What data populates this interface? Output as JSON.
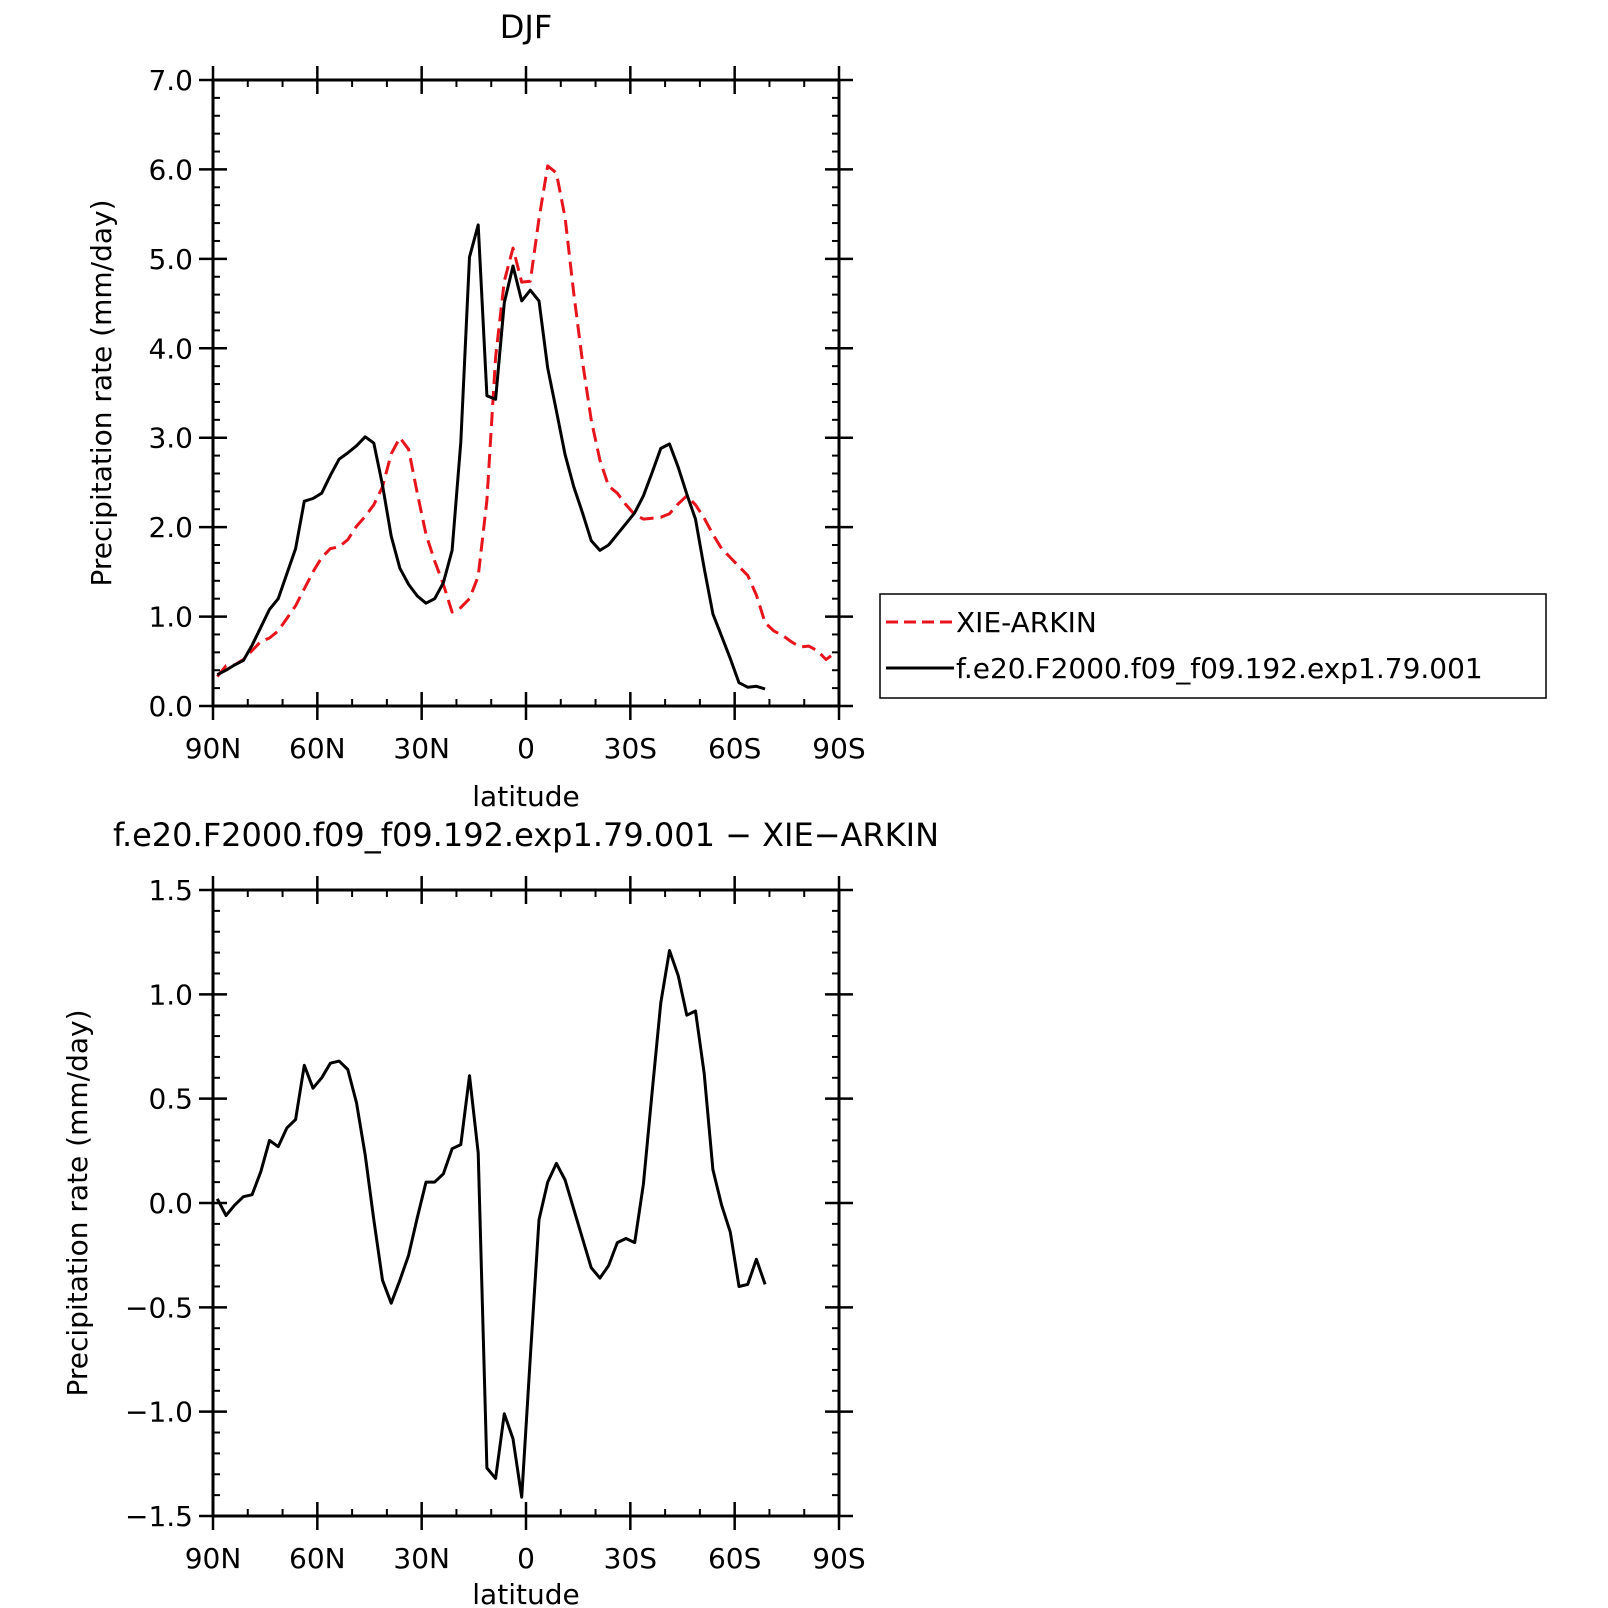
{
  "chart_data": [
    {
      "type": "line",
      "title": "DJF",
      "xlabel": "latitude",
      "ylabel": "Precipitation rate (mm/day)",
      "xlim": [
        -90,
        90
      ],
      "ylim": [
        0,
        7
      ],
      "x_ticks": [
        {
          "value": -90,
          "label": "90N"
        },
        {
          "value": -60,
          "label": "60N"
        },
        {
          "value": -30,
          "label": "30N"
        },
        {
          "value": 0,
          "label": "0"
        },
        {
          "value": 30,
          "label": "30S"
        },
        {
          "value": 60,
          "label": "60S"
        },
        {
          "value": 90,
          "label": "90S"
        }
      ],
      "y_ticks": [
        {
          "value": 0,
          "label": "0.0"
        },
        {
          "value": 1,
          "label": "1.0"
        },
        {
          "value": 2,
          "label": "2.0"
        },
        {
          "value": 3,
          "label": "3.0"
        },
        {
          "value": 4,
          "label": "4.0"
        },
        {
          "value": 5,
          "label": "5.0"
        },
        {
          "value": 6,
          "label": "6.0"
        },
        {
          "value": 7,
          "label": "7.0"
        }
      ],
      "legend_position": "right",
      "series": [
        {
          "name": "XIE-ARKIN",
          "color": "#e8141b",
          "dash": "dashed",
          "points": [
            [
              -88.75,
              0.33
            ],
            [
              -86.25,
              0.45
            ],
            [
              -83.75,
              0.46
            ],
            [
              -81.25,
              0.52
            ],
            [
              -78.75,
              0.62
            ],
            [
              -76.25,
              0.72
            ],
            [
              -73.75,
              0.76
            ],
            [
              -71.25,
              0.84
            ],
            [
              -68.75,
              0.98
            ],
            [
              -66.25,
              1.12
            ],
            [
              -63.75,
              1.31
            ],
            [
              -61.25,
              1.5
            ],
            [
              -58.75,
              1.66
            ],
            [
              -56.25,
              1.76
            ],
            [
              -53.75,
              1.78
            ],
            [
              -51.25,
              1.86
            ],
            [
              -48.75,
              2.01
            ],
            [
              -46.25,
              2.12
            ],
            [
              -43.75,
              2.25
            ],
            [
              -41.25,
              2.45
            ],
            [
              -38.75,
              2.82
            ],
            [
              -36.25,
              3.0
            ],
            [
              -33.75,
              2.87
            ],
            [
              -31.25,
              2.38
            ],
            [
              -28.75,
              1.92
            ],
            [
              -26.25,
              1.62
            ],
            [
              -23.75,
              1.36
            ],
            [
              -21.25,
              1.05
            ],
            [
              -18.75,
              1.1
            ],
            [
              -16.25,
              1.2
            ],
            [
              -13.75,
              1.45
            ],
            [
              -11.25,
              2.3
            ],
            [
              -8.75,
              3.9
            ],
            [
              -6.25,
              4.75
            ],
            [
              -3.75,
              5.12
            ],
            [
              -1.25,
              4.74
            ],
            [
              1.25,
              4.75
            ],
            [
              3.75,
              5.45
            ],
            [
              6.25,
              6.04
            ],
            [
              8.75,
              5.96
            ],
            [
              11.25,
              5.46
            ],
            [
              13.75,
              4.61
            ],
            [
              16.25,
              3.85
            ],
            [
              18.75,
              3.2
            ],
            [
              21.25,
              2.75
            ],
            [
              23.75,
              2.46
            ],
            [
              26.25,
              2.38
            ],
            [
              28.75,
              2.25
            ],
            [
              31.25,
              2.14
            ],
            [
              33.75,
              2.09
            ],
            [
              36.25,
              2.1
            ],
            [
              38.75,
              2.11
            ],
            [
              41.25,
              2.15
            ],
            [
              43.75,
              2.26
            ],
            [
              46.25,
              2.35
            ],
            [
              48.75,
              2.25
            ],
            [
              51.25,
              2.1
            ],
            [
              53.75,
              1.92
            ],
            [
              56.25,
              1.76
            ],
            [
              58.75,
              1.66
            ],
            [
              61.25,
              1.56
            ],
            [
              63.75,
              1.46
            ],
            [
              66.25,
              1.24
            ],
            [
              68.75,
              0.93
            ],
            [
              71.25,
              0.84
            ],
            [
              73.75,
              0.79
            ],
            [
              76.25,
              0.72
            ],
            [
              78.75,
              0.66
            ],
            [
              81.25,
              0.67
            ],
            [
              83.75,
              0.62
            ],
            [
              86.25,
              0.52
            ],
            [
              88.75,
              0.59
            ]
          ]
        },
        {
          "name": "f.e20.F2000.f09_f09.192.exp1.79.001",
          "color": "#000000",
          "dash": "solid",
          "points": [
            [
              -88.75,
              0.35
            ],
            [
              -86.25,
              0.4
            ],
            [
              -83.75,
              0.46
            ],
            [
              -81.25,
              0.51
            ],
            [
              -78.75,
              0.68
            ],
            [
              -76.25,
              0.88
            ],
            [
              -73.75,
              1.08
            ],
            [
              -71.25,
              1.2
            ],
            [
              -68.75,
              1.48
            ],
            [
              -66.25,
              1.76
            ],
            [
              -63.75,
              2.29
            ],
            [
              -61.25,
              2.32
            ],
            [
              -58.75,
              2.38
            ],
            [
              -56.25,
              2.58
            ],
            [
              -53.75,
              2.76
            ],
            [
              -51.25,
              2.83
            ],
            [
              -48.75,
              2.91
            ],
            [
              -46.25,
              3.01
            ],
            [
              -43.75,
              2.94
            ],
            [
              -41.25,
              2.47
            ],
            [
              -38.75,
              1.9
            ],
            [
              -36.25,
              1.54
            ],
            [
              -33.75,
              1.36
            ],
            [
              -31.25,
              1.23
            ],
            [
              -28.75,
              1.15
            ],
            [
              -26.25,
              1.2
            ],
            [
              -23.75,
              1.38
            ],
            [
              -21.25,
              1.74
            ],
            [
              -18.75,
              2.95
            ],
            [
              -16.25,
              5.02
            ],
            [
              -13.75,
              5.38
            ],
            [
              -11.25,
              3.47
            ],
            [
              -8.75,
              3.43
            ],
            [
              -6.25,
              4.51
            ],
            [
              -3.75,
              4.92
            ],
            [
              -1.25,
              4.53
            ],
            [
              1.25,
              4.65
            ],
            [
              3.75,
              4.53
            ],
            [
              6.25,
              3.78
            ],
            [
              8.75,
              3.3
            ],
            [
              11.25,
              2.81
            ],
            [
              13.75,
              2.45
            ],
            [
              16.25,
              2.16
            ],
            [
              18.75,
              1.85
            ],
            [
              21.25,
              1.74
            ],
            [
              23.75,
              1.8
            ],
            [
              26.25,
              1.92
            ],
            [
              28.75,
              2.04
            ],
            [
              31.25,
              2.16
            ],
            [
              33.75,
              2.35
            ],
            [
              36.25,
              2.61
            ],
            [
              38.75,
              2.88
            ],
            [
              41.25,
              2.93
            ],
            [
              43.75,
              2.67
            ],
            [
              46.25,
              2.37
            ],
            [
              48.75,
              2.09
            ],
            [
              51.25,
              1.54
            ],
            [
              53.75,
              1.03
            ],
            [
              56.25,
              0.78
            ],
            [
              58.75,
              0.53
            ],
            [
              61.25,
              0.26
            ],
            [
              63.75,
              0.21
            ],
            [
              66.25,
              0.22
            ],
            [
              68.75,
              0.19
            ]
          ]
        }
      ]
    },
    {
      "type": "line",
      "title": "f.e20.F2000.f09_f09.192.exp1.79.001 − XIE−ARKIN",
      "xlabel": "latitude",
      "ylabel": "Precipitation rate (mm/day)",
      "xlim": [
        -90,
        90
      ],
      "ylim": [
        -1.5,
        1.5
      ],
      "x_ticks": [
        {
          "value": -90,
          "label": "90N"
        },
        {
          "value": -60,
          "label": "60N"
        },
        {
          "value": -30,
          "label": "30N"
        },
        {
          "value": 0,
          "label": "0"
        },
        {
          "value": 30,
          "label": "30S"
        },
        {
          "value": 60,
          "label": "60S"
        },
        {
          "value": 90,
          "label": "90S"
        }
      ],
      "y_ticks": [
        {
          "value": -1.5,
          "label": "−1.5"
        },
        {
          "value": -1.0,
          "label": "−1.0"
        },
        {
          "value": -0.5,
          "label": "−0.5"
        },
        {
          "value": 0.0,
          "label": "0.0"
        },
        {
          "value": 0.5,
          "label": "0.5"
        },
        {
          "value": 1.0,
          "label": "1.0"
        },
        {
          "value": 1.5,
          "label": "1.5"
        }
      ],
      "series": [
        {
          "color": "#000000",
          "dash": "solid",
          "points": [
            [
              -88.75,
              0.02
            ],
            [
              -86.25,
              -0.06
            ],
            [
              -83.75,
              -0.01
            ],
            [
              -81.25,
              0.03
            ],
            [
              -78.75,
              0.04
            ],
            [
              -76.25,
              0.15
            ],
            [
              -73.75,
              0.3
            ],
            [
              -71.25,
              0.27
            ],
            [
              -68.75,
              0.36
            ],
            [
              -66.25,
              0.4
            ],
            [
              -63.75,
              0.66
            ],
            [
              -61.25,
              0.55
            ],
            [
              -58.75,
              0.6
            ],
            [
              -56.25,
              0.67
            ],
            [
              -53.75,
              0.68
            ],
            [
              -51.25,
              0.64
            ],
            [
              -48.75,
              0.48
            ],
            [
              -46.25,
              0.23
            ],
            [
              -43.75,
              -0.08
            ],
            [
              -41.25,
              -0.37
            ],
            [
              -38.75,
              -0.48
            ],
            [
              -36.25,
              -0.37
            ],
            [
              -33.75,
              -0.25
            ],
            [
              -31.25,
              -0.07
            ],
            [
              -28.75,
              0.1
            ],
            [
              -26.25,
              0.1
            ],
            [
              -23.75,
              0.14
            ],
            [
              -21.25,
              0.26
            ],
            [
              -18.75,
              0.28
            ],
            [
              -16.25,
              0.61
            ],
            [
              -13.75,
              0.24
            ],
            [
              -11.25,
              -1.27
            ],
            [
              -8.75,
              -1.32
            ],
            [
              -6.25,
              -1.01
            ],
            [
              -3.75,
              -1.13
            ],
            [
              -1.25,
              -1.41
            ],
            [
              1.25,
              -0.74
            ],
            [
              3.75,
              -0.08
            ],
            [
              6.25,
              0.1
            ],
            [
              8.75,
              0.19
            ],
            [
              11.25,
              0.11
            ],
            [
              13.75,
              -0.03
            ],
            [
              16.25,
              -0.17
            ],
            [
              18.75,
              -0.31
            ],
            [
              21.25,
              -0.36
            ],
            [
              23.75,
              -0.3
            ],
            [
              26.25,
              -0.19
            ],
            [
              28.75,
              -0.17
            ],
            [
              31.25,
              -0.19
            ],
            [
              33.75,
              0.09
            ],
            [
              36.25,
              0.53
            ],
            [
              38.75,
              0.96
            ],
            [
              41.25,
              1.21
            ],
            [
              43.75,
              1.09
            ],
            [
              46.25,
              0.9
            ],
            [
              48.75,
              0.92
            ],
            [
              51.25,
              0.62
            ],
            [
              53.75,
              0.16
            ],
            [
              56.25,
              -0.01
            ],
            [
              58.75,
              -0.14
            ],
            [
              61.25,
              -0.4
            ],
            [
              63.75,
              -0.39
            ],
            [
              66.25,
              -0.27
            ],
            [
              68.75,
              -0.39
            ]
          ]
        }
      ]
    }
  ]
}
